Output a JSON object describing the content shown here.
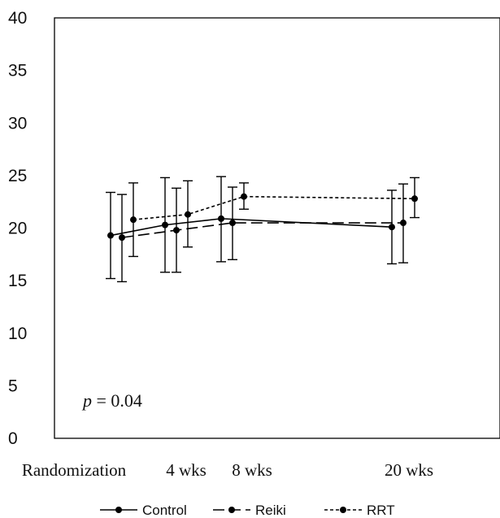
{
  "chart_data": {
    "type": "line",
    "x": [
      "Randomization",
      "4 wks",
      "8 wks",
      "20 wks"
    ],
    "x_weeks": [
      0,
      4,
      8,
      20
    ],
    "ylim": [
      0,
      40
    ],
    "yticks": [
      0,
      5,
      10,
      15,
      20,
      25,
      30,
      35,
      40
    ],
    "grid": false,
    "legend_position": "bottom",
    "annotation": {
      "italic": "p",
      "rest": " = 0.04"
    },
    "series": [
      {
        "name": "Control",
        "dash": "solid",
        "values": [
          19.3,
          20.3,
          20.9,
          20.1
        ],
        "err_low": [
          15.2,
          15.8,
          16.8,
          16.6
        ],
        "err_high": [
          23.4,
          24.8,
          24.9,
          23.6
        ]
      },
      {
        "name": "Reiki",
        "dash": "long-dash",
        "values": [
          19.1,
          19.8,
          20.5,
          20.5
        ],
        "err_low": [
          14.9,
          15.8,
          17.0,
          16.7
        ],
        "err_high": [
          23.2,
          23.8,
          23.9,
          24.2
        ]
      },
      {
        "name": "RRT",
        "dash": "short-dash",
        "values": [
          20.8,
          21.3,
          23.0,
          22.8
        ],
        "err_low": [
          17.3,
          18.2,
          21.8,
          21.0
        ],
        "err_high": [
          24.3,
          24.5,
          24.3,
          24.8
        ]
      }
    ]
  }
}
